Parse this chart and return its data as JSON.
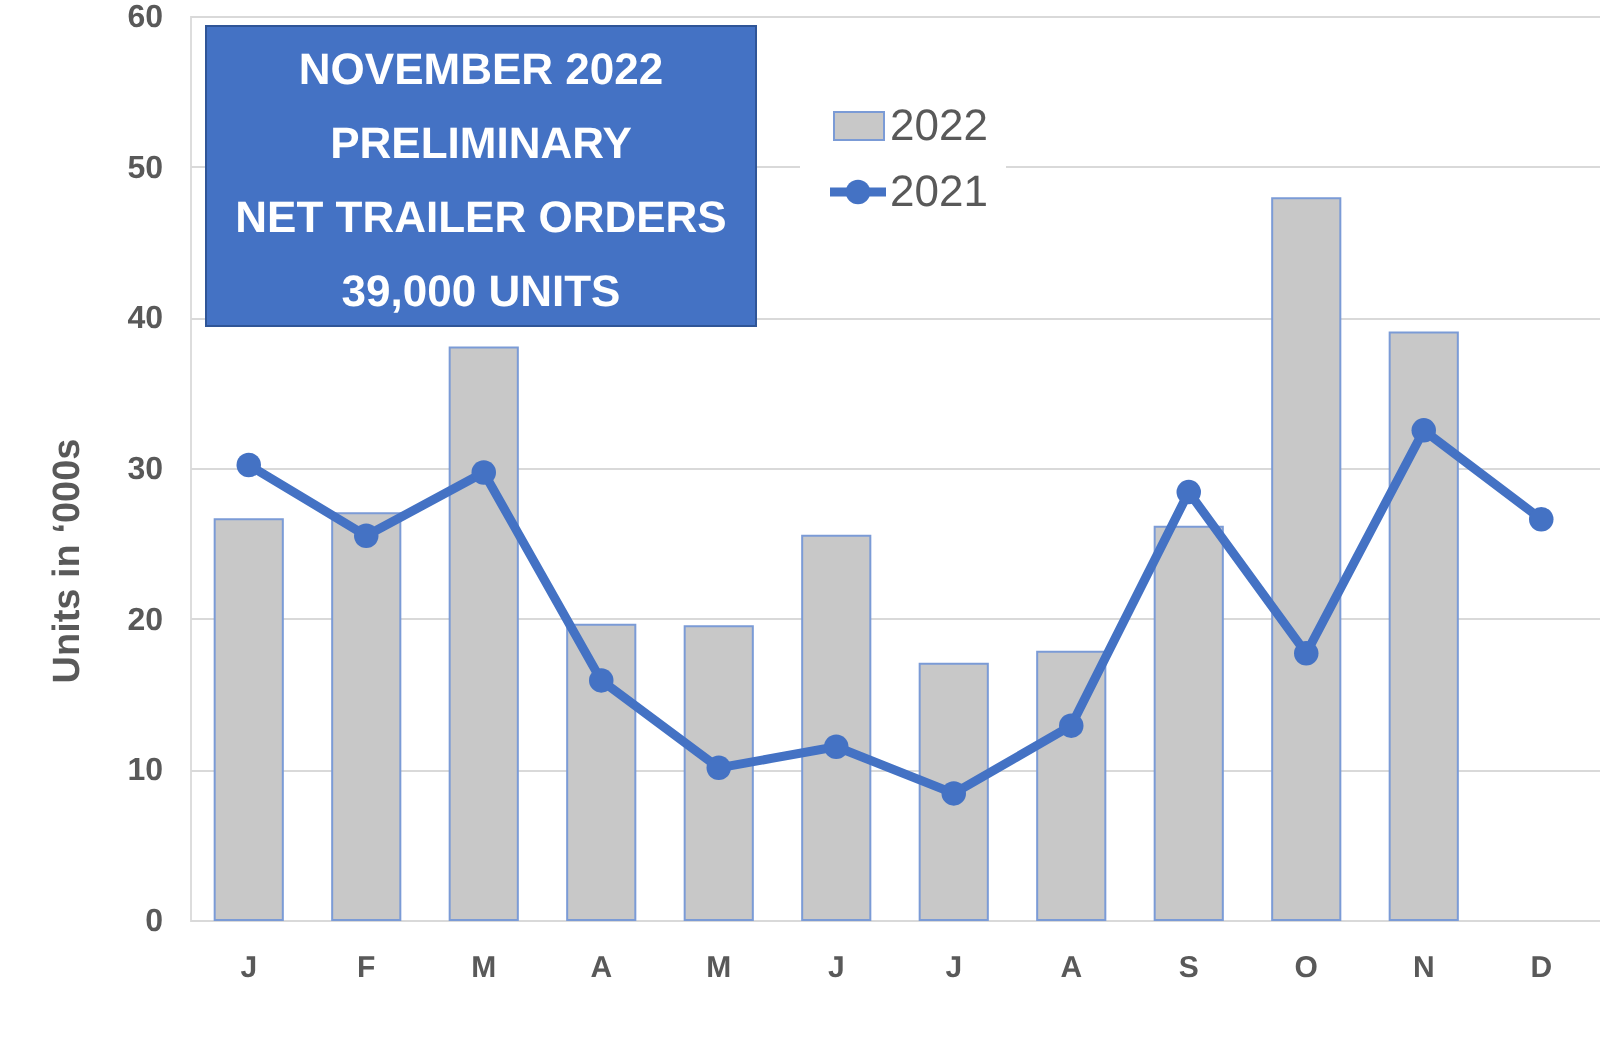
{
  "chart_data": {
    "type": "bar",
    "title": "NOVEMBER 2022\nPRELIMINARY\nNET TRAILER ORDERS\n39,000  UNITS",
    "ylabel": "Units in ‘000s",
    "categories": [
      "J",
      "F",
      "M",
      "A",
      "M",
      "J",
      "J",
      "A",
      "S",
      "O",
      "N",
      "D"
    ],
    "series": [
      {
        "name": "2022",
        "color": "#c8c8c8",
        "values": [
          26.6,
          27.0,
          38.0,
          19.6,
          19.5,
          25.5,
          17.0,
          17.8,
          26.1,
          47.9,
          39.0,
          null
        ]
      },
      {
        "name": "2021",
        "type": "line",
        "color": "#4472c4",
        "values": [
          30.2,
          25.5,
          29.7,
          15.9,
          10.1,
          11.5,
          8.4,
          12.9,
          28.4,
          17.7,
          32.5,
          26.6
        ]
      }
    ],
    "ylim": [
      0,
      60
    ],
    "yticks": [
      0,
      10,
      20,
      30,
      40,
      50,
      60
    ],
    "grid": "y",
    "legend": "top",
    "marker": "circle"
  }
}
